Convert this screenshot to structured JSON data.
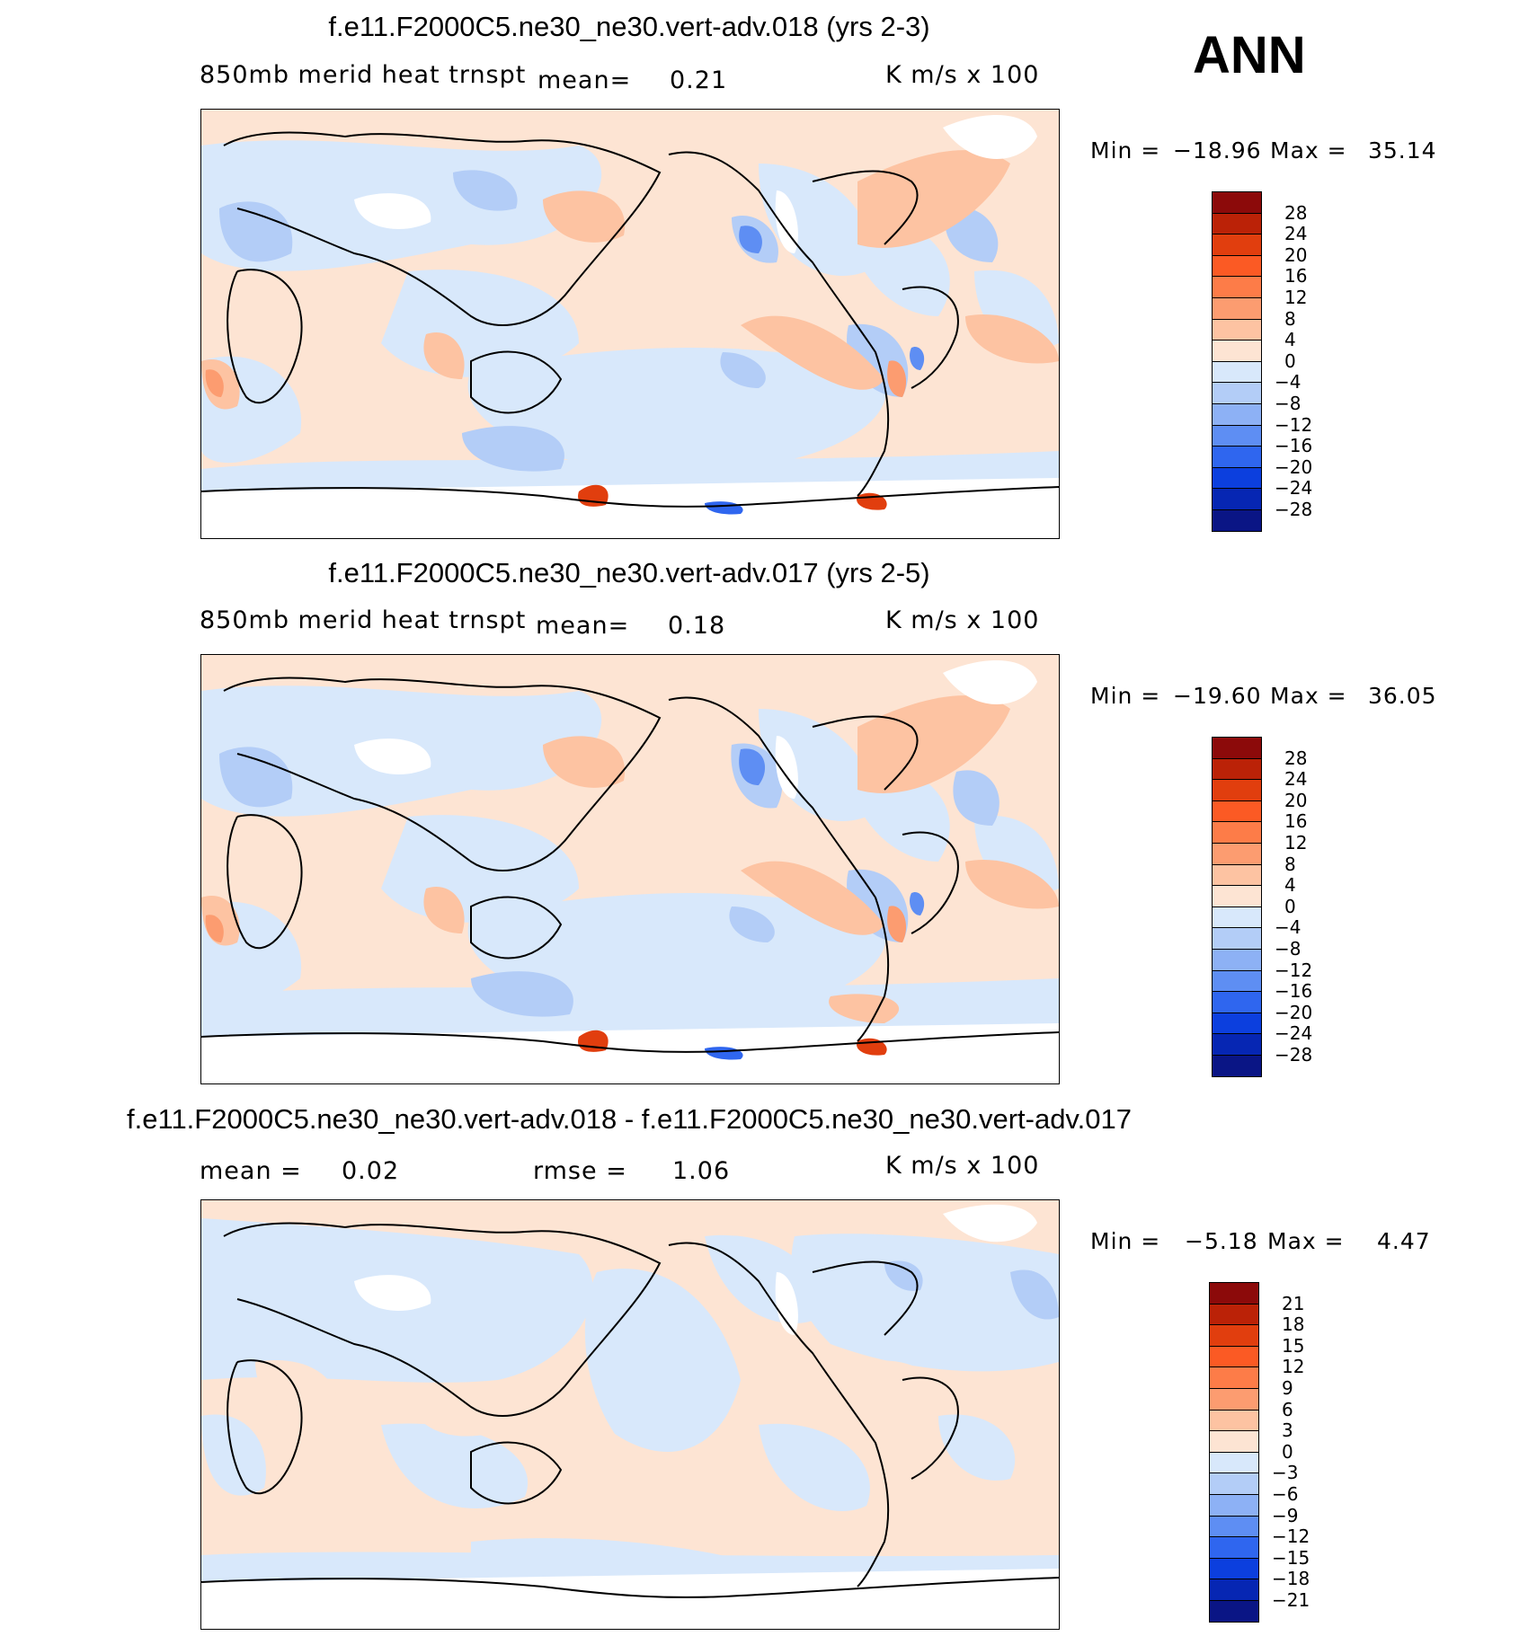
{
  "season": "ANN",
  "panels": [
    {
      "title": "f.e11.F2000C5.ne30_ne30.vert-adv.018 (yrs 2-3)",
      "variable": "850mb merid heat trnspt",
      "mean_label": "mean=",
      "mean_value": "0.21",
      "units": "K m/s x 100",
      "min_label": "Min =",
      "min_value": "−18.96",
      "max_label": "Max =",
      "max_value": "35.14",
      "colorbar": {
        "labels": [
          "28",
          "24",
          "20",
          "16",
          "12",
          "8",
          "4",
          "0",
          "−4",
          "−8",
          "−12",
          "−16",
          "−20",
          "−24",
          "−28"
        ],
        "colors": [
          "#8c0a0a",
          "#bb2207",
          "#e13e0e",
          "#fb5a24",
          "#fd7c48",
          "#fc9c70",
          "#fdc3a2",
          "#fde4d3",
          "#d8e8fb",
          "#b3cdf7",
          "#8db1f5",
          "#5e8ef3",
          "#2f66ef",
          "#0c3fde",
          "#0626b3",
          "#0a1585"
        ]
      }
    },
    {
      "title": "f.e11.F2000C5.ne30_ne30.vert-adv.017 (yrs 2-5)",
      "variable": "850mb merid heat trnspt",
      "mean_label": "mean=",
      "mean_value": "0.18",
      "units": "K m/s x 100",
      "min_label": "Min =",
      "min_value": "−19.60",
      "max_label": "Max =",
      "max_value": "36.05",
      "colorbar": {
        "labels": [
          "28",
          "24",
          "20",
          "16",
          "12",
          "8",
          "4",
          "0",
          "−4",
          "−8",
          "−12",
          "−16",
          "−20",
          "−24",
          "−28"
        ],
        "colors": [
          "#8c0a0a",
          "#bb2207",
          "#e13e0e",
          "#fb5a24",
          "#fd7c48",
          "#fc9c70",
          "#fdc3a2",
          "#fde4d3",
          "#d8e8fb",
          "#b3cdf7",
          "#8db1f5",
          "#5e8ef3",
          "#2f66ef",
          "#0c3fde",
          "#0626b3",
          "#0a1585"
        ]
      }
    },
    {
      "title": "f.e11.F2000C5.ne30_ne30.vert-adv.018 - f.e11.F2000C5.ne30_ne30.vert-adv.017",
      "mean_label": "mean =",
      "mean_value": "0.02",
      "rmse_label": "rmse =",
      "rmse_value": "1.06",
      "units": "K m/s x 100",
      "min_label": "Min =",
      "min_value": "−5.18",
      "max_label": "Max =",
      "max_value": "4.47",
      "colorbar": {
        "labels": [
          "21",
          "18",
          "15",
          "12",
          "9",
          "6",
          "3",
          "0",
          "−3",
          "−6",
          "−9",
          "−12",
          "−15",
          "−18",
          "−21"
        ],
        "colors": [
          "#8c0a0a",
          "#bb2207",
          "#e13e0e",
          "#fb5a24",
          "#fd7c48",
          "#fc9c70",
          "#fdc3a2",
          "#fde4d3",
          "#d8e8fb",
          "#b3cdf7",
          "#8db1f5",
          "#5e8ef3",
          "#2f66ef",
          "#0c3fde",
          "#0626b3",
          "#0a1585"
        ]
      }
    }
  ],
  "chart_data": [
    {
      "type": "heatmap",
      "title": "f.e11.F2000C5.ne30_ne30.vert-adv.018 (yrs 2-3)",
      "subtitle": "850mb merid heat trnspt",
      "units": "K m/s x 100",
      "mean": 0.21,
      "min": -18.96,
      "max": 35.14,
      "contour_levels": [
        -28,
        -24,
        -20,
        -16,
        -12,
        -8,
        -4,
        0,
        4,
        8,
        12,
        16,
        20,
        24,
        28
      ]
    },
    {
      "type": "heatmap",
      "title": "f.e11.F2000C5.ne30_ne30.vert-adv.017 (yrs 2-5)",
      "subtitle": "850mb merid heat trnspt",
      "units": "K m/s x 100",
      "mean": 0.18,
      "min": -19.6,
      "max": 36.05,
      "contour_levels": [
        -28,
        -24,
        -20,
        -16,
        -12,
        -8,
        -4,
        0,
        4,
        8,
        12,
        16,
        20,
        24,
        28
      ]
    },
    {
      "type": "heatmap",
      "title": "f.e11.F2000C5.ne30_ne30.vert-adv.018 - f.e11.F2000C5.ne30_ne30.vert-adv.017",
      "units": "K m/s x 100",
      "mean": 0.02,
      "rmse": 1.06,
      "min": -5.18,
      "max": 4.47,
      "contour_levels": [
        -21,
        -18,
        -15,
        -12,
        -9,
        -6,
        -3,
        0,
        3,
        6,
        9,
        12,
        15,
        18,
        21
      ]
    }
  ]
}
